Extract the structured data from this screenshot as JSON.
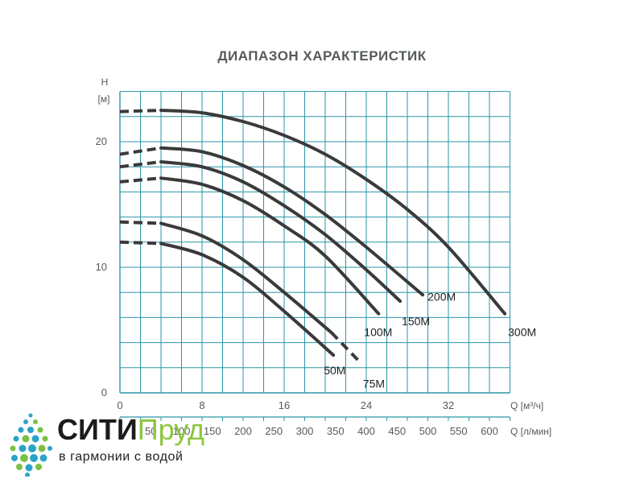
{
  "colors": {
    "grid": "#2a96a8",
    "curve": "#3a3a3a",
    "text": "#555a5e",
    "brand_dark": "#1c1c1c",
    "brand_green": "#8cc63f",
    "logo_blue": "#2aa3c9",
    "logo_green": "#7ac142"
  },
  "chart_data": {
    "type": "line",
    "title": "ДИАПАЗОН ХАРАКТЕРИСТИК",
    "ylabel_top": "H",
    "ylabel_unit": "[м]",
    "xlabel": "Q [м³/ч]",
    "x2label": "Q [л/мин]",
    "xlim": [
      0,
      38
    ],
    "ylim": [
      0,
      24
    ],
    "x_ticks": [
      0,
      8,
      16,
      24,
      32
    ],
    "x_tick_labels": [
      "0",
      "8",
      "16",
      "24",
      "32"
    ],
    "y_ticks": [
      0,
      10,
      20
    ],
    "y_tick_labels": [
      "0",
      "10",
      "20"
    ],
    "x2_ticks": [
      "50",
      "100",
      "150",
      "200",
      "250",
      "300",
      "350",
      "400",
      "450",
      "500",
      "550",
      "600"
    ],
    "grid": true,
    "dashed_segment_x": [
      0,
      4
    ],
    "series": [
      {
        "name": "50M",
        "x": [
          0,
          4,
          8,
          12,
          16,
          20.8
        ],
        "y": [
          12.0,
          11.9,
          11.0,
          9.2,
          6.5,
          3.0
        ]
      },
      {
        "name": "75M",
        "x": [
          0,
          4,
          8,
          12,
          16,
          20.6,
          23.2
        ],
        "y": [
          13.6,
          13.5,
          12.5,
          10.6,
          8.0,
          4.8,
          2.6
        ]
      },
      {
        "name": "100M",
        "x": [
          0,
          4,
          8,
          12,
          16,
          20,
          25.2
        ],
        "y": [
          16.8,
          17.1,
          16.6,
          15.3,
          13.3,
          10.9,
          6.3
        ]
      },
      {
        "name": "150M",
        "x": [
          0,
          4,
          8,
          12,
          16,
          20,
          24,
          27.3
        ],
        "y": [
          18.0,
          18.4,
          18.0,
          16.8,
          14.9,
          12.6,
          9.8,
          7.3
        ]
      },
      {
        "name": "200M",
        "x": [
          0,
          4,
          8,
          12,
          16,
          20,
          24,
          29.5
        ],
        "y": [
          19.0,
          19.5,
          19.2,
          18.1,
          16.4,
          14.2,
          11.6,
          7.8
        ]
      },
      {
        "name": "300M",
        "x": [
          0,
          4,
          8,
          12,
          16,
          20,
          24,
          28,
          32,
          37.5
        ],
        "y": [
          22.4,
          22.5,
          22.3,
          21.6,
          20.5,
          19.0,
          17.0,
          14.6,
          11.6,
          6.3
        ]
      }
    ]
  },
  "logo": {
    "brand_part1": "СИТИ",
    "brand_part2": "Пруд",
    "slogan": "в гармонии с водой"
  }
}
